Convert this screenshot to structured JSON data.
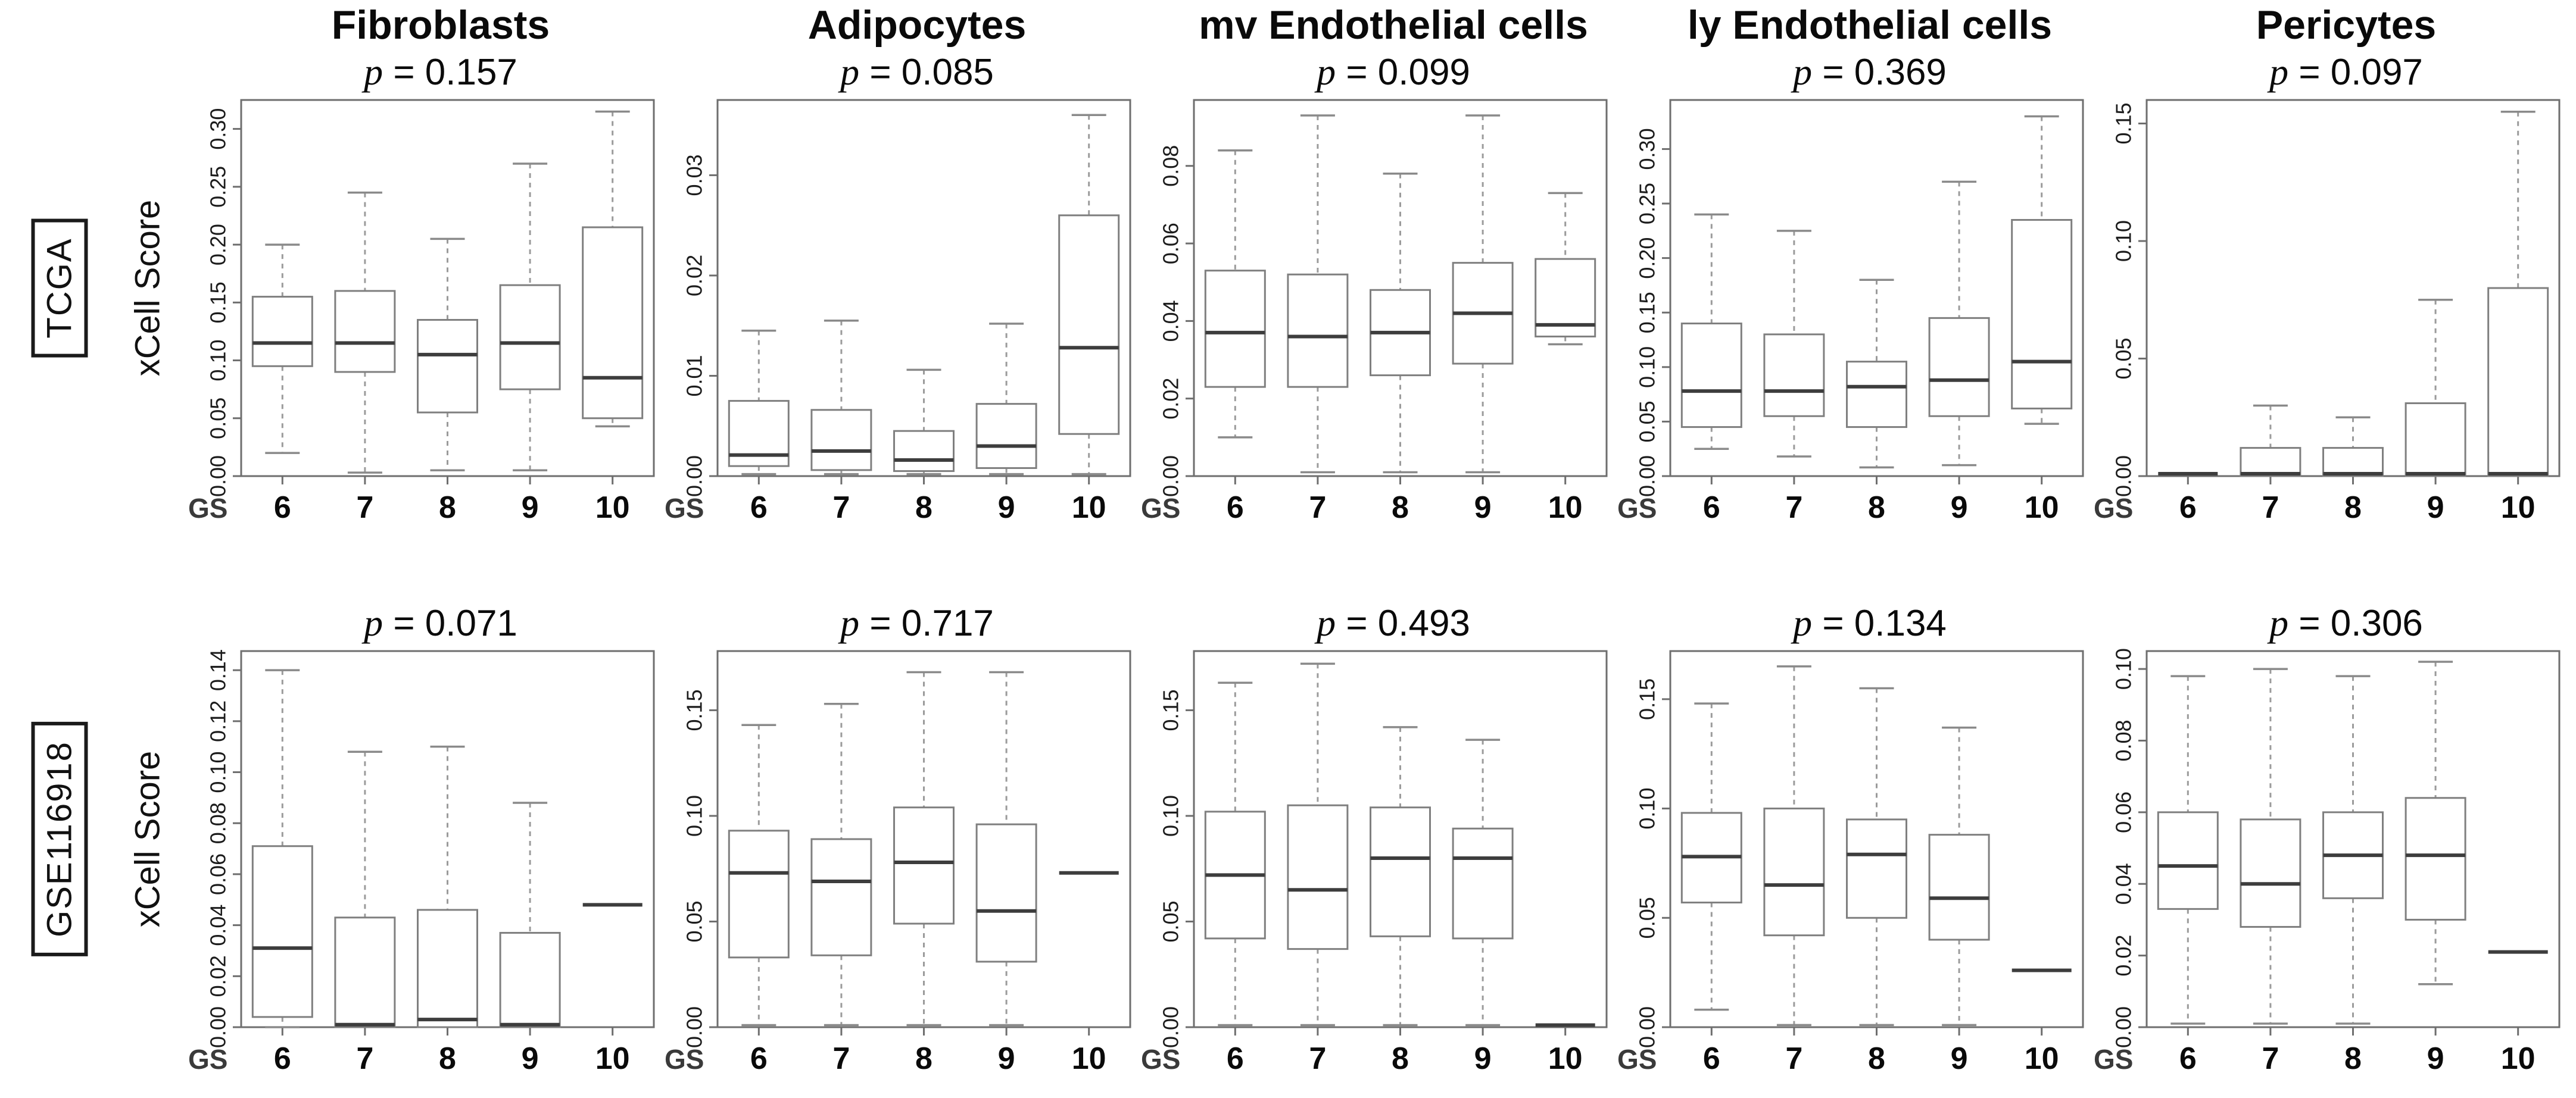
{
  "figure": {
    "ylabel": "xCell Score",
    "x_axis_prefix": "GS",
    "row_labels": [
      "TCGA",
      "GSE116918"
    ],
    "column_titles": [
      "Fibroblasts",
      "Adipocytes",
      "mv Endothelial cells",
      "ly Endothelial cells",
      "Pericytes"
    ]
  },
  "colors": {
    "background": "#ffffff",
    "plot_border": "#6e6e6e",
    "box_stroke": "#7f7f7f",
    "median_line": "#3d3d3d",
    "whisker": "#9b9b9b",
    "whisker_cap": "#8a8a8a",
    "title_text": "#0a0a0a",
    "tick_text": "#1c1c1c",
    "axis_label_text": "#111111",
    "gs_label_text": "#3a3a3a"
  },
  "chart_data": {
    "type": "box",
    "categories": [
      "6",
      "7",
      "8",
      "9",
      "10"
    ],
    "xlabel": "GS",
    "ylabel": "xCell Score",
    "legend": "none",
    "grid": false,
    "rows": [
      {
        "dataset": "TCGA",
        "panels": [
          {
            "title": "Fibroblasts",
            "p_label": "p = 0.157",
            "p_value": 0.157,
            "ylim": [
              0,
              0.325
            ],
            "yticks": [
              0,
              0.05,
              0.1,
              0.15,
              0.2,
              0.25,
              0.3
            ],
            "ytick_labels": [
              "0.00",
              "0.05",
              "0.10",
              "0.15",
              "0.20",
              "0.25",
              "0.30"
            ],
            "boxes": [
              {
                "low": 0.02,
                "q1": 0.095,
                "median": 0.115,
                "q3": 0.155,
                "high": 0.2
              },
              {
                "low": 0.003,
                "q1": 0.09,
                "median": 0.115,
                "q3": 0.16,
                "high": 0.245
              },
              {
                "low": 0.005,
                "q1": 0.055,
                "median": 0.105,
                "q3": 0.135,
                "high": 0.205
              },
              {
                "low": 0.005,
                "q1": 0.075,
                "median": 0.115,
                "q3": 0.165,
                "high": 0.27
              },
              {
                "low": 0.043,
                "q1": 0.05,
                "median": 0.085,
                "q3": 0.215,
                "high": 0.315
              }
            ]
          },
          {
            "title": "Adipocytes",
            "p_label": "p = 0.085",
            "p_value": 0.085,
            "ylim": [
              0,
              0.0375
            ],
            "yticks": [
              0,
              0.01,
              0.02,
              0.03
            ],
            "ytick_labels": [
              "0.00",
              "0.01",
              "0.02",
              "0.03"
            ],
            "boxes": [
              {
                "low": 0.0002,
                "q1": 0.001,
                "median": 0.0021,
                "q3": 0.0075,
                "high": 0.0145
              },
              {
                "low": 0.0002,
                "q1": 0.0006,
                "median": 0.0025,
                "q3": 0.0066,
                "high": 0.0155
              },
              {
                "low": 0.0002,
                "q1": 0.0005,
                "median": 0.0016,
                "q3": 0.0045,
                "high": 0.0106
              },
              {
                "low": 0.0002,
                "q1": 0.0008,
                "median": 0.003,
                "q3": 0.0072,
                "high": 0.0152
              },
              {
                "low": 0.0002,
                "q1": 0.0042,
                "median": 0.0128,
                "q3": 0.026,
                "high": 0.036
              }
            ]
          },
          {
            "title": "mv Endothelial cells",
            "p_label": "p = 0.099",
            "p_value": 0.099,
            "ylim": [
              0,
              0.097
            ],
            "yticks": [
              0,
              0.02,
              0.04,
              0.06,
              0.08
            ],
            "ytick_labels": [
              "0.00",
              "0.02",
              "0.04",
              "0.06",
              "0.08"
            ],
            "boxes": [
              {
                "low": 0.01,
                "q1": 0.023,
                "median": 0.037,
                "q3": 0.053,
                "high": 0.084
              },
              {
                "low": 0.001,
                "q1": 0.023,
                "median": 0.036,
                "q3": 0.052,
                "high": 0.093
              },
              {
                "low": 0.001,
                "q1": 0.026,
                "median": 0.037,
                "q3": 0.048,
                "high": 0.078
              },
              {
                "low": 0.001,
                "q1": 0.029,
                "median": 0.042,
                "q3": 0.055,
                "high": 0.093
              },
              {
                "low": 0.034,
                "q1": 0.036,
                "median": 0.039,
                "q3": 0.056,
                "high": 0.073
              }
            ]
          },
          {
            "title": "ly Endothelial cells",
            "p_label": "p = 0.369",
            "p_value": 0.369,
            "ylim": [
              0,
              0.345
            ],
            "yticks": [
              0,
              0.05,
              0.1,
              0.15,
              0.2,
              0.25,
              0.3
            ],
            "ytick_labels": [
              "0.00",
              "0.05",
              "0.10",
              "0.15",
              "0.20",
              "0.25",
              "0.30"
            ],
            "boxes": [
              {
                "low": 0.025,
                "q1": 0.045,
                "median": 0.078,
                "q3": 0.14,
                "high": 0.24
              },
              {
                "low": 0.018,
                "q1": 0.055,
                "median": 0.078,
                "q3": 0.13,
                "high": 0.225
              },
              {
                "low": 0.008,
                "q1": 0.045,
                "median": 0.082,
                "q3": 0.105,
                "high": 0.18
              },
              {
                "low": 0.01,
                "q1": 0.055,
                "median": 0.088,
                "q3": 0.145,
                "high": 0.27
              },
              {
                "low": 0.048,
                "q1": 0.062,
                "median": 0.105,
                "q3": 0.235,
                "high": 0.33
              }
            ]
          },
          {
            "title": "Pericytes",
            "p_label": "p = 0.097",
            "p_value": 0.097,
            "ylim": [
              0,
              0.16
            ],
            "yticks": [
              0,
              0.05,
              0.1,
              0.15
            ],
            "ytick_labels": [
              "0.00",
              "0.05",
              "0.10",
              "0.15"
            ],
            "boxes": [
              {
                "low": 0.001,
                "q1": 0.001,
                "median": 0.001,
                "q3": 0.001,
                "high": 0.001
              },
              {
                "low": 0.0,
                "q1": 0.0,
                "median": 0.001,
                "q3": 0.012,
                "high": 0.03
              },
              {
                "low": 0.0,
                "q1": 0.0,
                "median": 0.001,
                "q3": 0.012,
                "high": 0.025
              },
              {
                "low": 0.0,
                "q1": 0.0,
                "median": 0.001,
                "q3": 0.031,
                "high": 0.075
              },
              {
                "low": 0.0,
                "q1": 0.0,
                "median": 0.001,
                "q3": 0.08,
                "high": 0.155
              }
            ]
          }
        ]
      },
      {
        "dataset": "GSE116918",
        "panels": [
          {
            "title": "",
            "p_label": "p = 0.071",
            "p_value": 0.071,
            "ylim": [
              0,
              0.1475
            ],
            "yticks": [
              0,
              0.02,
              0.04,
              0.06,
              0.08,
              0.1,
              0.12,
              0.14
            ],
            "ytick_labels": [
              "0.00",
              "0.02",
              "0.04",
              "0.06",
              "0.08",
              "0.10",
              "0.12",
              "0.14"
            ],
            "boxes": [
              {
                "low": 0.0,
                "q1": 0.004,
                "median": 0.031,
                "q3": 0.071,
                "high": 0.14
              },
              {
                "low": 0.0,
                "q1": 0.0,
                "median": 0.001,
                "q3": 0.043,
                "high": 0.108
              },
              {
                "low": 0.0,
                "q1": 0.0,
                "median": 0.003,
                "q3": 0.046,
                "high": 0.11
              },
              {
                "low": 0.0,
                "q1": 0.0,
                "median": 0.001,
                "q3": 0.037,
                "high": 0.088
              },
              {
                "low": 0.048,
                "q1": 0.048,
                "median": 0.048,
                "q3": 0.048,
                "high": 0.048
              }
            ]
          },
          {
            "title": "",
            "p_label": "p = 0.717",
            "p_value": 0.717,
            "ylim": [
              0,
              0.178
            ],
            "yticks": [
              0,
              0.05,
              0.1,
              0.15
            ],
            "ytick_labels": [
              "0.00",
              "0.05",
              "0.10",
              "0.15"
            ],
            "boxes": [
              {
                "low": 0.001,
                "q1": 0.033,
                "median": 0.073,
                "q3": 0.093,
                "high": 0.143
              },
              {
                "low": 0.001,
                "q1": 0.034,
                "median": 0.069,
                "q3": 0.089,
                "high": 0.153
              },
              {
                "low": 0.001,
                "q1": 0.049,
                "median": 0.078,
                "q3": 0.104,
                "high": 0.168
              },
              {
                "low": 0.001,
                "q1": 0.031,
                "median": 0.055,
                "q3": 0.096,
                "high": 0.168
              },
              {
                "low": 0.073,
                "q1": 0.073,
                "median": 0.073,
                "q3": 0.073,
                "high": 0.073
              }
            ]
          },
          {
            "title": "",
            "p_label": "p = 0.493",
            "p_value": 0.493,
            "ylim": [
              0,
              0.178
            ],
            "yticks": [
              0,
              0.05,
              0.1,
              0.15
            ],
            "ytick_labels": [
              "0.00",
              "0.05",
              "0.10",
              "0.15"
            ],
            "boxes": [
              {
                "low": 0.001,
                "q1": 0.042,
                "median": 0.072,
                "q3": 0.102,
                "high": 0.163
              },
              {
                "low": 0.001,
                "q1": 0.037,
                "median": 0.065,
                "q3": 0.105,
                "high": 0.172
              },
              {
                "low": 0.001,
                "q1": 0.043,
                "median": 0.08,
                "q3": 0.104,
                "high": 0.142
              },
              {
                "low": 0.001,
                "q1": 0.042,
                "median": 0.08,
                "q3": 0.094,
                "high": 0.136
              },
              {
                "low": 0.001,
                "q1": 0.001,
                "median": 0.001,
                "q3": 0.001,
                "high": 0.001
              }
            ]
          },
          {
            "title": "",
            "p_label": "p = 0.134",
            "p_value": 0.134,
            "ylim": [
              0,
              0.172
            ],
            "yticks": [
              0,
              0.05,
              0.1,
              0.15
            ],
            "ytick_labels": [
              "0.00",
              "0.05",
              "0.10",
              "0.15"
            ],
            "boxes": [
              {
                "low": 0.008,
                "q1": 0.057,
                "median": 0.078,
                "q3": 0.098,
                "high": 0.148
              },
              {
                "low": 0.001,
                "q1": 0.042,
                "median": 0.065,
                "q3": 0.1,
                "high": 0.165
              },
              {
                "low": 0.001,
                "q1": 0.05,
                "median": 0.079,
                "q3": 0.095,
                "high": 0.155
              },
              {
                "low": 0.001,
                "q1": 0.04,
                "median": 0.059,
                "q3": 0.088,
                "high": 0.137
              },
              {
                "low": 0.026,
                "q1": 0.026,
                "median": 0.026,
                "q3": 0.026,
                "high": 0.026
              }
            ]
          },
          {
            "title": "",
            "p_label": "p = 0.306",
            "p_value": 0.306,
            "ylim": [
              0,
              0.105
            ],
            "yticks": [
              0,
              0.02,
              0.04,
              0.06,
              0.08,
              0.1
            ],
            "ytick_labels": [
              "0.00",
              "0.02",
              "0.04",
              "0.06",
              "0.08",
              "0.10"
            ],
            "boxes": [
              {
                "low": 0.001,
                "q1": 0.033,
                "median": 0.045,
                "q3": 0.06,
                "high": 0.098
              },
              {
                "low": 0.001,
                "q1": 0.028,
                "median": 0.04,
                "q3": 0.058,
                "high": 0.1
              },
              {
                "low": 0.001,
                "q1": 0.036,
                "median": 0.048,
                "q3": 0.06,
                "high": 0.098
              },
              {
                "low": 0.012,
                "q1": 0.03,
                "median": 0.048,
                "q3": 0.064,
                "high": 0.102
              },
              {
                "low": 0.021,
                "q1": 0.021,
                "median": 0.021,
                "q3": 0.021,
                "high": 0.021
              }
            ]
          }
        ]
      }
    ]
  }
}
